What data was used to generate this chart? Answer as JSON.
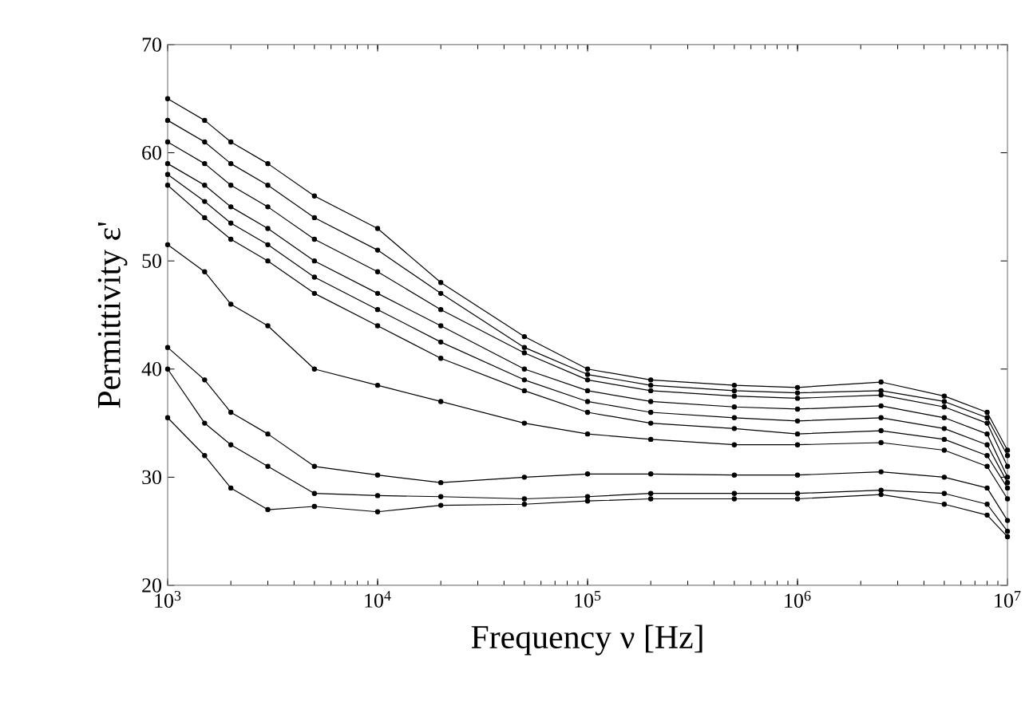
{
  "chart_data": {
    "type": "line",
    "xlabel": "Frequency  ν [Hz]",
    "ylabel": "Permittivity  ε'",
    "log": "x",
    "marker": "circle",
    "x": [
      1000,
      1500,
      2000,
      3000,
      5000,
      10000,
      20000,
      50000,
      100000,
      200000,
      500000,
      1000000,
      2500000,
      5000000,
      8000000,
      10000000
    ],
    "xlim": [
      1000,
      10000000
    ],
    "ylim": [
      20,
      70
    ],
    "xticks": [
      {
        "value": 1000,
        "label": "10$^{3}$"
      },
      {
        "value": 10000,
        "label": "10$^{4}$"
      },
      {
        "value": 100000,
        "label": "10$^{5}$"
      },
      {
        "value": 1000000,
        "label": "10$^{6}$"
      },
      {
        "value": 10000000,
        "label": "10$^{7}$"
      }
    ],
    "yticks": [
      20,
      30,
      40,
      50,
      60,
      70
    ],
    "series": [
      {
        "color": "#000000",
        "values": [
          35.5,
          32,
          29,
          27,
          27.3,
          26.8,
          27.4,
          27.5,
          27.8,
          28,
          28,
          28,
          28.4,
          27.5,
          26.5,
          24.5
        ]
      },
      {
        "color": "#000000",
        "values": [
          40,
          35,
          33,
          31,
          28.5,
          28.3,
          28.2,
          28,
          28.2,
          28.5,
          28.5,
          28.5,
          28.8,
          28.5,
          27.5,
          25
        ]
      },
      {
        "color": "#000000",
        "values": [
          42,
          39,
          36,
          34,
          31,
          30.2,
          29.5,
          30,
          30.3,
          30.3,
          30.2,
          30.2,
          30.5,
          30,
          29,
          26
        ]
      },
      {
        "color": "#000000",
        "values": [
          51.5,
          49,
          46,
          44,
          40,
          38.5,
          37,
          35,
          34,
          33.5,
          33,
          33,
          33.2,
          32.5,
          31,
          28
        ]
      },
      {
        "color": "#000000",
        "values": [
          57,
          54,
          52,
          50,
          47,
          44,
          41,
          38,
          36,
          35,
          34.5,
          34,
          34.3,
          33.5,
          32,
          29
        ]
      },
      {
        "color": "#000000",
        "values": [
          58,
          55.5,
          53.5,
          51.5,
          48.5,
          45.5,
          42.5,
          39,
          37,
          36,
          35.5,
          35.2,
          35.5,
          34.5,
          33,
          29.5
        ]
      },
      {
        "color": "#000000",
        "values": [
          59,
          57,
          55,
          53,
          50,
          47,
          44,
          40,
          38,
          37,
          36.5,
          36.3,
          36.6,
          35.5,
          34,
          30
        ]
      },
      {
        "color": "#000000",
        "values": [
          61,
          59,
          57,
          55,
          52,
          49,
          45.5,
          41.5,
          39,
          38,
          37.5,
          37.3,
          37.6,
          36.5,
          35,
          31
        ]
      },
      {
        "color": "#000000",
        "values": [
          63,
          61,
          59,
          57,
          54,
          51,
          47,
          42,
          39.5,
          38.5,
          38,
          37.8,
          38,
          37,
          35.5,
          32
        ]
      },
      {
        "color": "#000000",
        "values": [
          65,
          63,
          61,
          59,
          56,
          53,
          48,
          43,
          40,
          39,
          38.5,
          38.3,
          38.8,
          37.5,
          36,
          32.5
        ]
      }
    ]
  }
}
